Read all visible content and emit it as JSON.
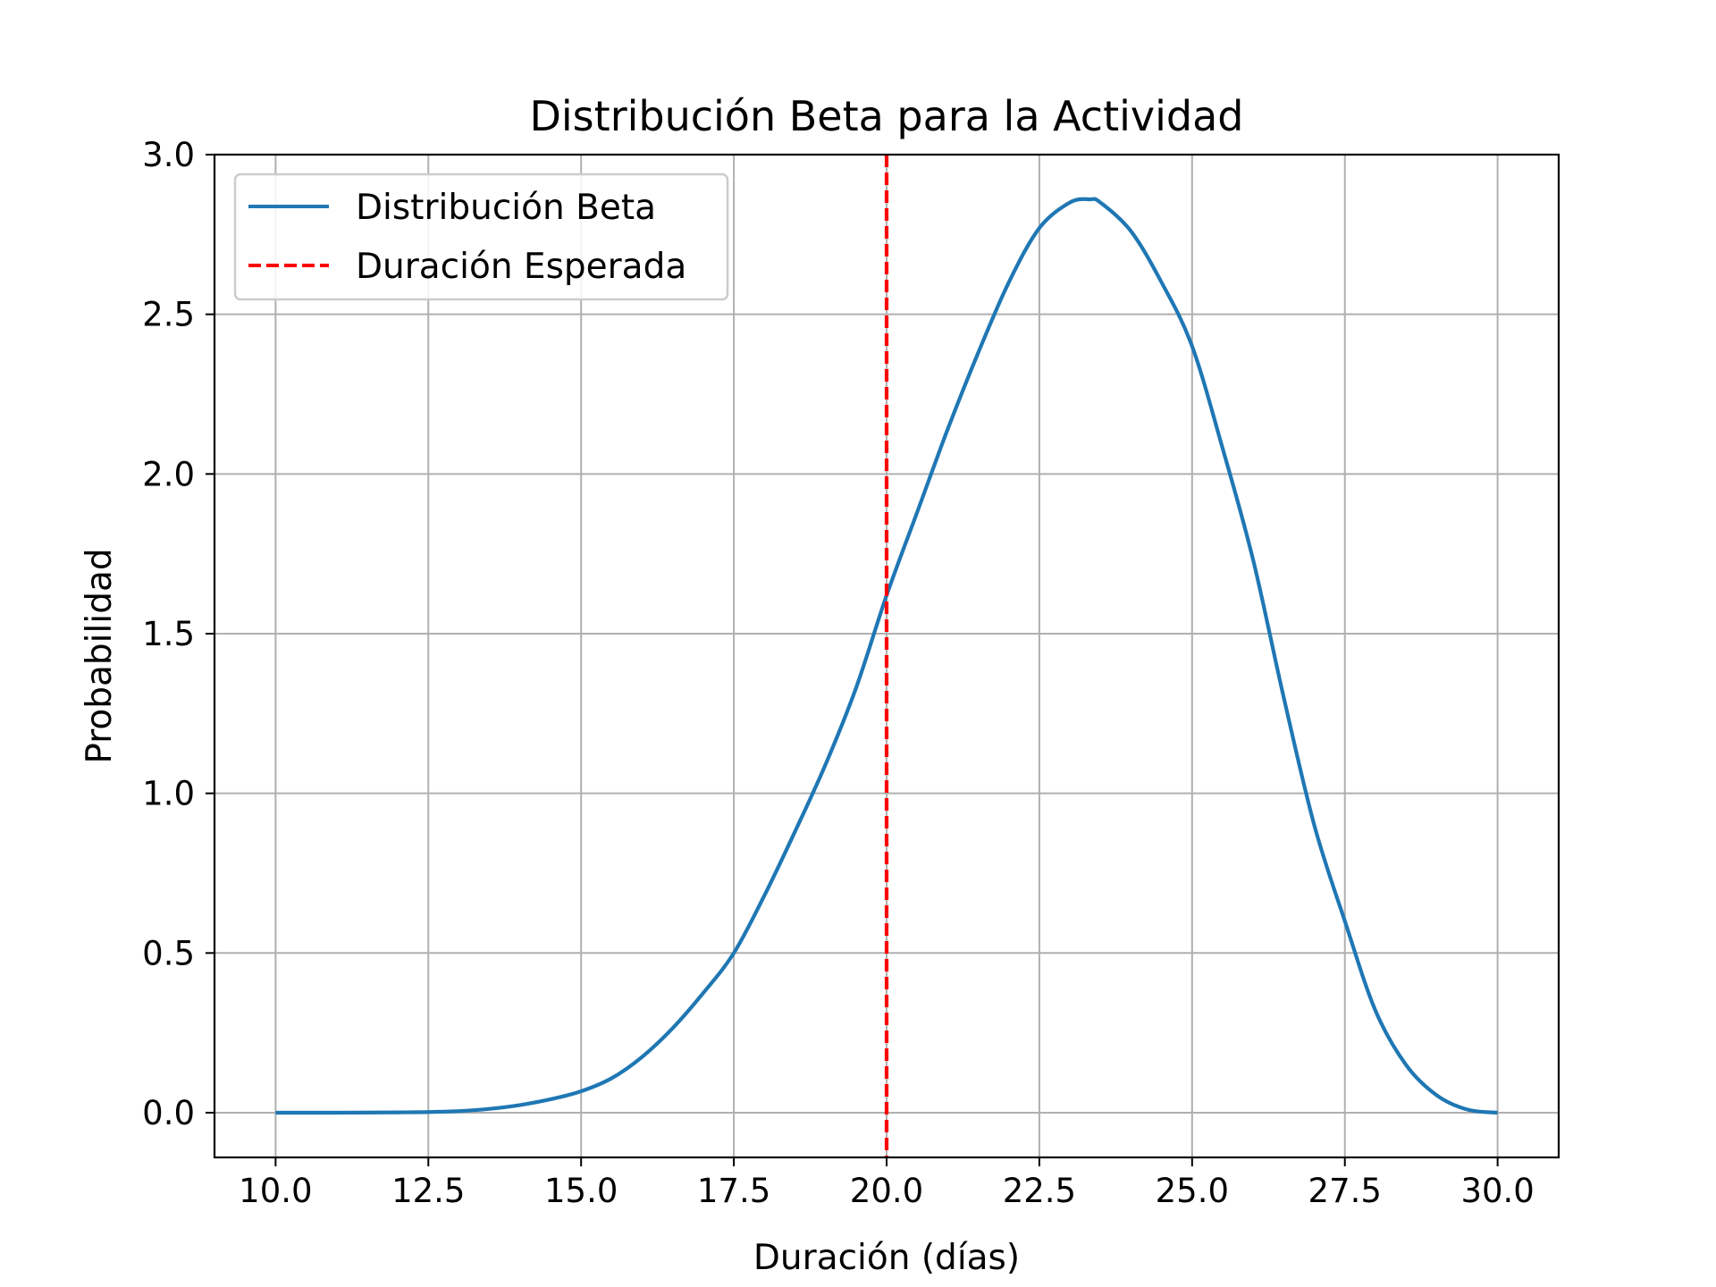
{
  "chart_data": {
    "type": "line",
    "title": "Distribución Beta para la Actividad",
    "xlabel": "Duración (días)",
    "ylabel": "Probabilidad",
    "xlim": [
      9.0,
      31.0
    ],
    "ylim": [
      -0.14,
      3.0
    ],
    "xticks": [
      10.0,
      12.5,
      15.0,
      17.5,
      20.0,
      22.5,
      25.0,
      27.5,
      30.0
    ],
    "xtick_labels": [
      "10.0",
      "12.5",
      "15.0",
      "17.5",
      "20.0",
      "22.5",
      "25.0",
      "27.5",
      "30.0"
    ],
    "yticks": [
      0.0,
      0.5,
      1.0,
      1.5,
      2.0,
      2.5,
      3.0
    ],
    "ytick_labels": [
      "0.0",
      "0.5",
      "1.0",
      "1.5",
      "2.0",
      "2.5",
      "3.0"
    ],
    "grid": true,
    "legend_position": "upper-left",
    "series": [
      {
        "name": "Distribución Beta",
        "color": "#1f77b4",
        "style": "solid",
        "x": [
          10.0,
          11.0,
          12.0,
          12.5,
          13.0,
          13.5,
          14.0,
          14.5,
          15.0,
          15.5,
          16.0,
          16.5,
          17.0,
          17.5,
          18.0,
          18.5,
          19.0,
          19.5,
          20.0,
          20.5,
          21.0,
          21.5,
          22.0,
          22.5,
          23.0,
          23.33,
          23.5,
          24.0,
          24.5,
          25.0,
          25.5,
          26.0,
          26.5,
          27.0,
          27.5,
          28.0,
          28.5,
          29.0,
          29.5,
          30.0
        ],
        "y": [
          0.0,
          0.0,
          0.001,
          0.002,
          0.005,
          0.012,
          0.024,
          0.042,
          0.067,
          0.108,
          0.175,
          0.265,
          0.375,
          0.5,
          0.68,
          0.88,
          1.09,
          1.33,
          1.62,
          1.88,
          2.14,
          2.38,
          2.6,
          2.77,
          2.85,
          2.86,
          2.85,
          2.76,
          2.6,
          2.4,
          2.08,
          1.73,
          1.3,
          0.9,
          0.6,
          0.32,
          0.15,
          0.055,
          0.01,
          0.0
        ]
      },
      {
        "name": "Duración Esperada",
        "color": "#ff0000",
        "style": "dashed",
        "vline_x": 20.0
      }
    ]
  }
}
